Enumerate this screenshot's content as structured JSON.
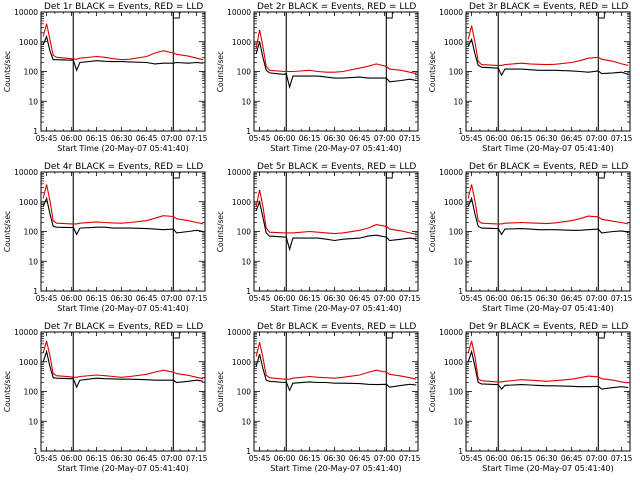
{
  "figure": {
    "panel_titles": [
      "Det 1r BLACK = Events, RED = LLD",
      "Det 2r BLACK = Events, RED = LLD",
      "Det 3r BLACK = Events, RED = LLD",
      "Det 4r BLACK = Events, RED = LLD",
      "Det 5r BLACK = Events, RED = LLD",
      "Det 6r BLACK = Events, RED = LLD",
      "Det 7r BLACK = Events, RED = LLD",
      "Det 8r BLACK = Events, RED = LLD",
      "Det 9r BLACK = Events, RED = LLD"
    ],
    "xlabel": "Start Time (20-May-07 05:41:40)",
    "ylabel": "Counts/sec",
    "colors": {
      "events": "#000000",
      "lld": "#dd0000",
      "axes": "#000000"
    }
  },
  "chart_data": {
    "type": "line",
    "yscale": "log",
    "ylim": [
      1,
      10000
    ],
    "y_ticks": [
      1,
      10,
      100,
      1000,
      10000
    ],
    "y_tick_labels": [
      "1",
      "10",
      "100",
      "1000",
      "10000"
    ],
    "x_tick_labels": [
      "05:45",
      "06:00",
      "06:15",
      "06:30",
      "06:45",
      "07:00",
      "07:15"
    ],
    "x_tick_minutes": [
      225,
      240,
      255,
      270,
      285,
      300,
      315
    ],
    "xlim_minutes": [
      221.67,
      320
    ],
    "grid": false,
    "legend": "none",
    "vertical_markers_minutes": [
      241,
      301
    ],
    "x_minutes": [
      223,
      225,
      227,
      229,
      231,
      240,
      241,
      243,
      245,
      255,
      260,
      265,
      270,
      275,
      285,
      290,
      295,
      301,
      303,
      310,
      315,
      319
    ],
    "panels": [
      {
        "detector": "Det 1r",
        "events": [
          800,
          1500,
          500,
          250,
          250,
          240,
          250,
          110,
          200,
          230,
          220,
          215,
          215,
          210,
          200,
          180,
          190,
          190,
          200,
          190,
          200,
          190
        ],
        "lld": [
          1500,
          4000,
          1200,
          350,
          300,
          270,
          260,
          260,
          280,
          320,
          300,
          270,
          250,
          260,
          320,
          420,
          500,
          420,
          380,
          330,
          280,
          250
        ]
      },
      {
        "detector": "Det 2r",
        "events": [
          400,
          1000,
          300,
          110,
          90,
          80,
          85,
          30,
          70,
          70,
          70,
          65,
          60,
          60,
          65,
          60,
          60,
          60,
          45,
          50,
          55,
          50
        ],
        "lld": [
          600,
          2500,
          700,
          150,
          110,
          100,
          100,
          100,
          100,
          110,
          100,
          95,
          95,
          100,
          130,
          150,
          180,
          150,
          120,
          110,
          95,
          85
        ]
      },
      {
        "detector": "Det 3r",
        "events": [
          700,
          1200,
          400,
          160,
          140,
          130,
          130,
          75,
          120,
          120,
          115,
          110,
          110,
          110,
          105,
          100,
          95,
          105,
          85,
          90,
          95,
          80
        ],
        "lld": [
          1200,
          3500,
          1000,
          220,
          170,
          160,
          160,
          160,
          170,
          190,
          180,
          175,
          170,
          175,
          200,
          230,
          280,
          300,
          260,
          220,
          180,
          160
        ]
      },
      {
        "detector": "Det 4r",
        "events": [
          700,
          1300,
          400,
          150,
          140,
          135,
          140,
          80,
          130,
          140,
          140,
          130,
          130,
          130,
          125,
          120,
          115,
          120,
          90,
          100,
          110,
          100
        ],
        "lld": [
          1300,
          3800,
          1100,
          230,
          190,
          180,
          180,
          180,
          190,
          210,
          200,
          195,
          190,
          200,
          230,
          280,
          340,
          320,
          270,
          230,
          200,
          180
        ]
      },
      {
        "detector": "Det 5r",
        "events": [
          500,
          1000,
          300,
          90,
          70,
          65,
          65,
          25,
          60,
          60,
          60,
          55,
          50,
          55,
          60,
          70,
          75,
          65,
          50,
          55,
          60,
          55
        ],
        "lld": [
          700,
          2500,
          700,
          130,
          95,
          90,
          90,
          90,
          90,
          100,
          95,
          90,
          85,
          90,
          110,
          130,
          170,
          150,
          120,
          105,
          90,
          80
        ]
      },
      {
        "detector": "Det 6r",
        "events": [
          700,
          1300,
          400,
          150,
          130,
          125,
          125,
          80,
          120,
          125,
          120,
          115,
          115,
          115,
          110,
          110,
          115,
          120,
          90,
          100,
          105,
          95
        ],
        "lld": [
          1300,
          3800,
          1100,
          230,
          190,
          180,
          180,
          180,
          190,
          200,
          195,
          190,
          185,
          195,
          230,
          270,
          330,
          310,
          260,
          220,
          200,
          180
        ]
      },
      {
        "detector": "Det 7r",
        "events": [
          1000,
          2200,
          700,
          290,
          280,
          270,
          280,
          140,
          240,
          280,
          270,
          265,
          260,
          260,
          250,
          240,
          240,
          240,
          200,
          220,
          240,
          220
        ],
        "lld": [
          2000,
          5000,
          1600,
          400,
          340,
          310,
          300,
          300,
          320,
          360,
          340,
          320,
          300,
          320,
          380,
          450,
          520,
          450,
          400,
          350,
          300,
          270
        ]
      },
      {
        "detector": "Det 8r",
        "events": [
          700,
          1800,
          600,
          240,
          220,
          200,
          210,
          110,
          190,
          210,
          200,
          200,
          190,
          190,
          185,
          175,
          170,
          175,
          140,
          160,
          175,
          165
        ],
        "lld": [
          1500,
          4500,
          1400,
          350,
          290,
          260,
          260,
          260,
          280,
          320,
          300,
          290,
          280,
          300,
          360,
          440,
          520,
          450,
          380,
          330,
          290,
          260
        ]
      },
      {
        "detector": "Det 9r",
        "events": [
          1000,
          2200,
          700,
          200,
          180,
          170,
          170,
          120,
          160,
          170,
          165,
          160,
          155,
          155,
          150,
          145,
          145,
          150,
          120,
          135,
          145,
          135
        ],
        "lld": [
          2000,
          5000,
          1500,
          270,
          230,
          210,
          210,
          210,
          220,
          250,
          240,
          230,
          220,
          230,
          260,
          290,
          330,
          310,
          270,
          240,
          210,
          195
        ]
      }
    ]
  }
}
